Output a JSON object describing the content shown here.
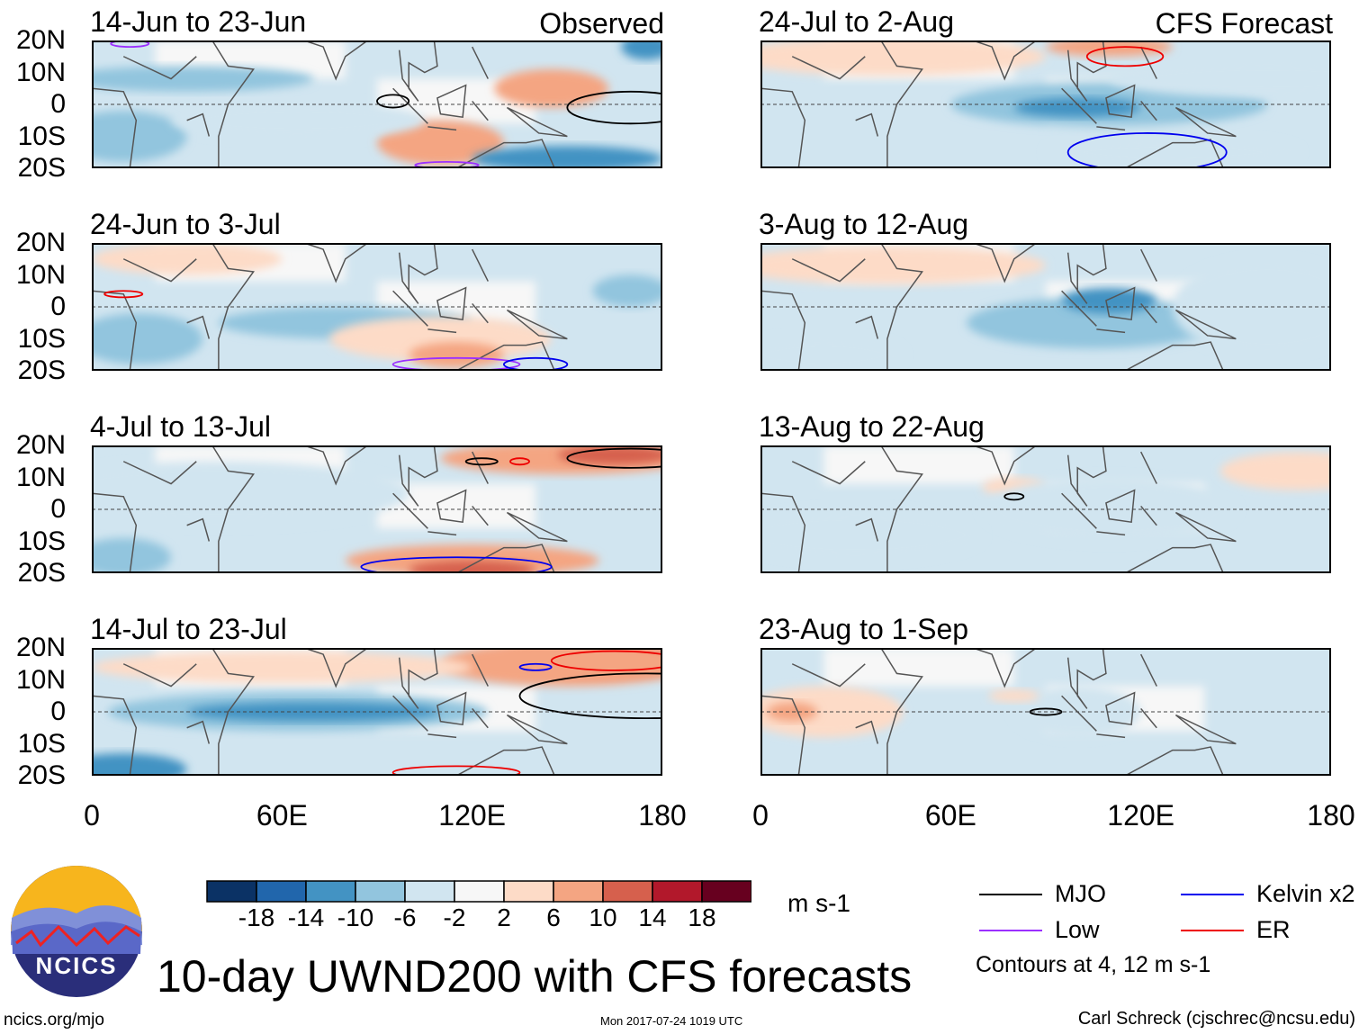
{
  "chart_data": {
    "type": "heatmap",
    "title": "10-day UWND200 with CFS forecasts",
    "units": "m s-1",
    "left_column_label": "Observed",
    "right_column_label": "CFS Forecast",
    "lat_ticks": [
      "20N",
      "10N",
      "0",
      "10S",
      "20S"
    ],
    "lon_ticks": [
      "0",
      "60E",
      "120E",
      "180"
    ],
    "lon_range": [
      0,
      180
    ],
    "lat_range": [
      -20,
      20
    ],
    "panels": [
      {
        "title": "14-Jun to 23-Jun",
        "column": "Observed"
      },
      {
        "title": "24-Jun to 3-Jul",
        "column": "Observed"
      },
      {
        "title": "4-Jul to 13-Jul",
        "column": "Observed"
      },
      {
        "title": "14-Jul to 23-Jul",
        "column": "Observed"
      },
      {
        "title": "24-Jul to 2-Aug",
        "column": "CFS Forecast"
      },
      {
        "title": "3-Aug to 12-Aug",
        "column": "CFS Forecast"
      },
      {
        "title": "13-Aug to 22-Aug",
        "column": "CFS Forecast"
      },
      {
        "title": "23-Aug to 1-Sep",
        "column": "CFS Forecast"
      }
    ],
    "colorbar": {
      "levels": [
        "-18",
        "-14",
        "-10",
        "-6",
        "-2",
        "2",
        "6",
        "10",
        "14",
        "18"
      ],
      "colors": [
        "#0b3265",
        "#2166ac",
        "#4393c3",
        "#92c5de",
        "#d1e5f0",
        "#f7f7f7",
        "#fddbc7",
        "#f4a582",
        "#d6604d",
        "#b2182b",
        "#67001f"
      ]
    },
    "legend": [
      {
        "label": "MJO",
        "color": "#000000"
      },
      {
        "label": "Kelvin x2",
        "color": "#0000ee"
      },
      {
        "label": "Low",
        "color": "#9b30ff"
      },
      {
        "label": "ER",
        "color": "#ee0000"
      }
    ],
    "contour_note": "Contours at 4, 12 m s-1"
  },
  "footer": {
    "logo_text": "NCICS",
    "url": "ncics.org/mjo",
    "timestamp": "Mon 2017-07-24 1019 UTC",
    "author": "Carl Schreck (cjschrec@ncsu.edu)"
  }
}
